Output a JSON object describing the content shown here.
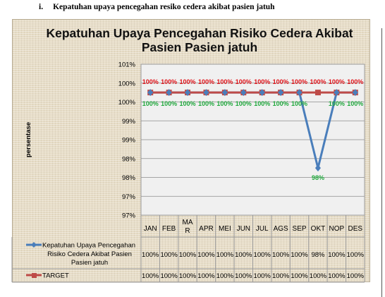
{
  "heading": {
    "number": "i.",
    "text": "Kepatuhan upaya pencegahan resiko cedera akibat pasien jatuh"
  },
  "chart_data": {
    "type": "line",
    "title": [
      "Kepatuhan Upaya Pencegahan Risiko Cedera Akibat",
      "Pasien Pasien jatuh"
    ],
    "ylabel": "persentase",
    "xlabel": "",
    "categories": [
      "JAN",
      "FEB",
      "MAR",
      "APR",
      "MEI",
      "JUN",
      "JUL",
      "AGS",
      "SEP",
      "OKT",
      "NOP",
      "DES"
    ],
    "category_lines": {
      "MAR": [
        "MA",
        "R"
      ]
    },
    "y_ticks": [
      "101%",
      "100%",
      "100%",
      "99%",
      "99%",
      "98%",
      "98%",
      "97%",
      "97%"
    ],
    "ylim": [
      96.75,
      100.75
    ],
    "grid": true,
    "series": [
      {
        "name": "Kepatuhan Upaya Pencegahan Risiko Cedera Akibat Pasien Pasien jatuh",
        "name_lines": [
          "Kepatuhan Upaya Pencegahan",
          "Risiko Cedera Akibat Pasien",
          "Pasien jatuh"
        ],
        "values": [
          100,
          100,
          100,
          100,
          100,
          100,
          100,
          100,
          100,
          98,
          100,
          100
        ],
        "labels": [
          "100%",
          "100%",
          "100%",
          "100%",
          "100%",
          "100%",
          "100%",
          "100%",
          "100%",
          "98%",
          "100%",
          "100%"
        ],
        "table_values": [
          "100%",
          "100%",
          "100%",
          "100%",
          "100%",
          "100%",
          "100%",
          "100%",
          "100%",
          "98%",
          "100%",
          "100%"
        ],
        "color": "#4a7ebb",
        "label_color": "#1fa83c"
      },
      {
        "name": "TARGET",
        "name_lines": [
          "TARGET"
        ],
        "values": [
          100,
          100,
          100,
          100,
          100,
          100,
          100,
          100,
          100,
          100,
          100,
          100
        ],
        "labels": [
          "100%",
          "100%",
          "100%",
          "100%",
          "100%",
          "100%",
          "100%",
          "100%",
          "100%",
          "100%",
          "100%",
          "100%"
        ],
        "table_values": [
          "100%",
          "100%",
          "100%",
          "100%",
          "100%",
          "100%",
          "100%",
          "100%",
          "100%",
          "100%",
          "100%",
          "100%"
        ],
        "color": "#be4b48",
        "label_color": "#e0141a"
      }
    ]
  }
}
